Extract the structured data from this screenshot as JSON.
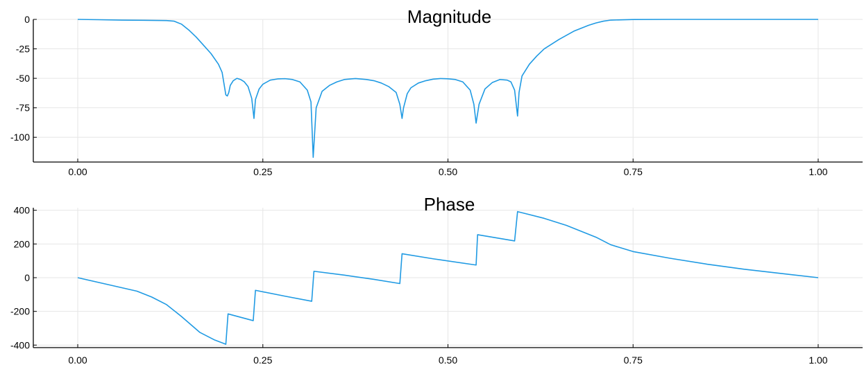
{
  "chart_data": [
    {
      "type": "line",
      "title": "Magnitude",
      "xlabel": "",
      "ylabel": "",
      "xlim": [
        -0.06,
        1.06
      ],
      "ylim": [
        -121,
        0
      ],
      "xticks": [
        0.0,
        0.25,
        0.5,
        0.75,
        1.0
      ],
      "xtick_labels": [
        "0.00",
        "0.25",
        "0.50",
        "0.75",
        "1.00"
      ],
      "yticks": [
        0,
        -25,
        -50,
        -75,
        -100
      ],
      "ytick_labels": [
        "0",
        "-25",
        "-50",
        "-75",
        "-100"
      ],
      "grid": true,
      "series": [
        {
          "color": "#1f9ae3",
          "x": [
            0.0,
            0.03,
            0.06,
            0.09,
            0.12,
            0.13,
            0.14,
            0.15,
            0.16,
            0.17,
            0.18,
            0.19,
            0.195,
            0.2,
            0.202,
            0.204,
            0.206,
            0.21,
            0.215,
            0.22,
            0.225,
            0.23,
            0.235,
            0.238,
            0.24,
            0.245,
            0.25,
            0.26,
            0.27,
            0.28,
            0.29,
            0.3,
            0.31,
            0.315,
            0.318,
            0.322,
            0.33,
            0.34,
            0.35,
            0.36,
            0.375,
            0.39,
            0.4,
            0.41,
            0.42,
            0.43,
            0.435,
            0.438,
            0.44,
            0.445,
            0.45,
            0.46,
            0.47,
            0.48,
            0.49,
            0.5,
            0.51,
            0.52,
            0.53,
            0.535,
            0.538,
            0.542,
            0.55,
            0.56,
            0.57,
            0.58,
            0.585,
            0.59,
            0.594,
            0.596,
            0.6,
            0.61,
            0.62,
            0.63,
            0.65,
            0.67,
            0.69,
            0.7,
            0.71,
            0.72,
            0.75,
            0.8,
            0.9,
            1.0
          ],
          "y": [
            0,
            -0.3,
            -0.6,
            -0.8,
            -1,
            -1.5,
            -4,
            -9,
            -15,
            -22,
            -29,
            -38,
            -45,
            -64,
            -65,
            -62,
            -56,
            -52,
            -50,
            -51,
            -53,
            -57,
            -67,
            -84,
            -68,
            -59,
            -55,
            -51.5,
            -50.5,
            -50.3,
            -51,
            -53,
            -60,
            -70,
            -117,
            -75,
            -61,
            -56,
            -53,
            -51,
            -50.2,
            -51,
            -52,
            -54,
            -57,
            -62,
            -72,
            -84,
            -75,
            -63,
            -58,
            -54,
            -52,
            -50.7,
            -50.2,
            -50.4,
            -51,
            -53,
            -60,
            -72,
            -88,
            -72,
            -59,
            -53.5,
            -51,
            -51.5,
            -53,
            -60,
            -82,
            -62,
            -48,
            -38,
            -31,
            -25,
            -17,
            -10,
            -5,
            -3,
            -1.5,
            -0.6,
            -0.1,
            0,
            0,
            0
          ]
        }
      ]
    },
    {
      "type": "line",
      "title": "Phase",
      "xlabel": "",
      "ylabel": "",
      "xlim": [
        -0.06,
        1.06
      ],
      "ylim": [
        -415,
        415
      ],
      "xticks": [
        0.0,
        0.25,
        0.5,
        0.75,
        1.0
      ],
      "xtick_labels": [
        "0.00",
        "0.25",
        "0.50",
        "0.75",
        "1.00"
      ],
      "yticks": [
        400,
        200,
        0,
        -200,
        -400
      ],
      "ytick_labels": [
        "400",
        "200",
        "0",
        "-200",
        "-400"
      ],
      "grid": true,
      "series": [
        {
          "color": "#1f9ae3",
          "x": [
            0.0,
            0.04,
            0.08,
            0.1,
            0.12,
            0.14,
            0.165,
            0.185,
            0.2,
            0.203,
            0.237,
            0.24,
            0.28,
            0.316,
            0.319,
            0.36,
            0.4,
            0.435,
            0.438,
            0.48,
            0.538,
            0.54,
            0.59,
            0.594,
            0.63,
            0.66,
            0.7,
            0.72,
            0.75,
            0.8,
            0.85,
            0.9,
            0.95,
            1.0
          ],
          "y": [
            0,
            -40,
            -80,
            -115,
            -160,
            -230,
            -325,
            -370,
            -395,
            -215,
            -255,
            -75,
            -110,
            -140,
            38,
            15,
            -10,
            -35,
            142,
            112,
            75,
            255,
            218,
            392,
            352,
            310,
            240,
            195,
            155,
            115,
            80,
            50,
            25,
            0
          ]
        }
      ]
    }
  ]
}
